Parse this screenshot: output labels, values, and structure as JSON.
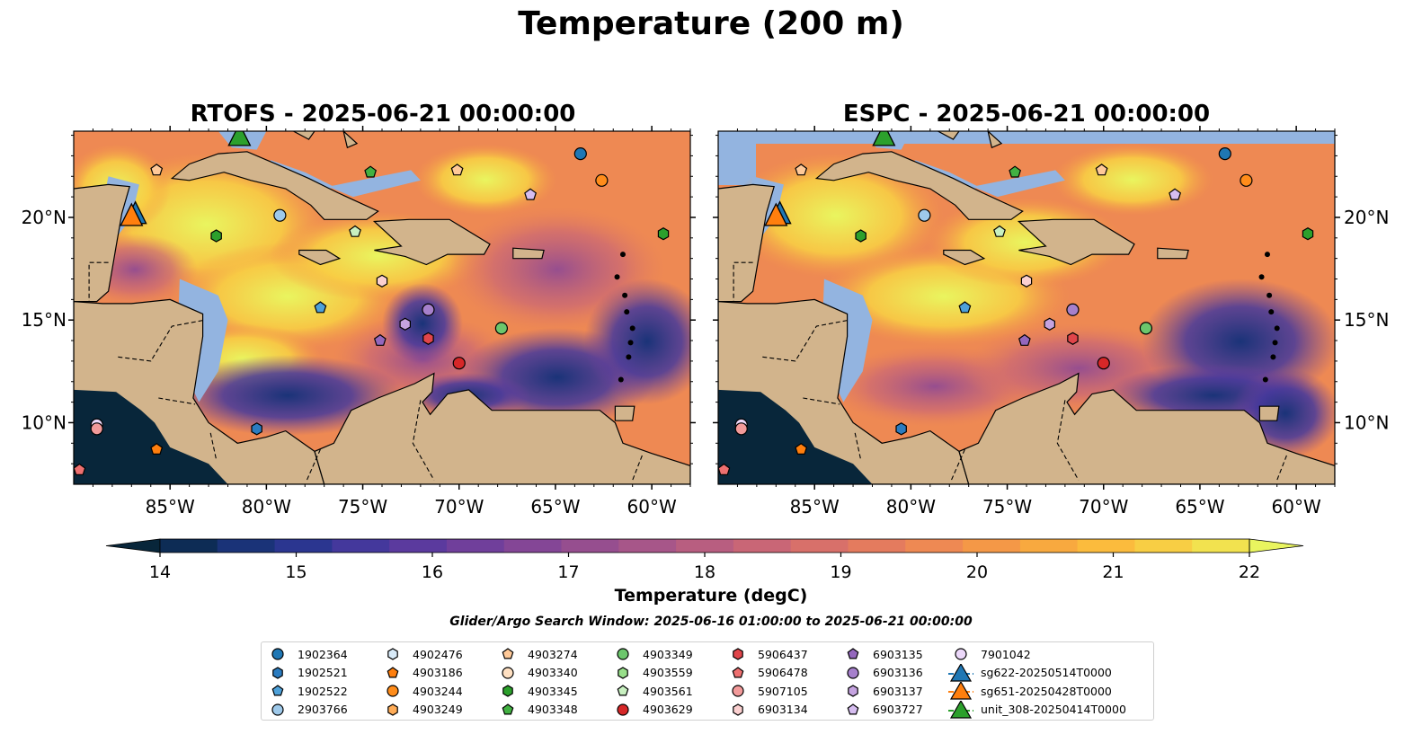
{
  "figure": {
    "title": "Temperature (200 m)",
    "panels": [
      {
        "title": "RTOFS - 2025-06-21 00:00:00"
      },
      {
        "title": "ESPC - 2025-06-21 00:00:00"
      }
    ],
    "lat_ticks": [
      "10°N",
      "15°N",
      "20°N"
    ],
    "lon_ticks": [
      "85°W",
      "80°W",
      "75°W",
      "70°W",
      "65°W",
      "60°W"
    ],
    "colorbar": {
      "label": "Temperature (degC)",
      "ticks": [
        "14",
        "15",
        "16",
        "17",
        "18",
        "19",
        "20",
        "21",
        "22"
      ],
      "colors": [
        "#08263a",
        "#0d2c55",
        "#1a3378",
        "#2b3690",
        "#44389c",
        "#5b3a9e",
        "#703f9b",
        "#844696",
        "#964e8f",
        "#a75689",
        "#b85e80",
        "#c96676",
        "#d8706a",
        "#e47b5e",
        "#ee8953",
        "#f49847",
        "#f8a93f",
        "#fbbb3d",
        "#f8ce44",
        "#f2e24f",
        "#e9f55f"
      ]
    },
    "search_window": "Glider/Argo Search Window: 2025-06-16 01:00:00 to 2025-06-21 00:00:00"
  },
  "map_colors": {
    "land": "#d2b48c",
    "shallow": "#93b4e0",
    "deep_cold": "#08263a"
  },
  "legend": [
    {
      "label": "1902364",
      "marker": "circle",
      "color": "#1f77b4"
    },
    {
      "label": "1902521",
      "marker": "hexagon",
      "color": "#2b7cc0"
    },
    {
      "label": "1902522",
      "marker": "pentagon",
      "color": "#4ea1d9"
    },
    {
      "label": "2903766",
      "marker": "circle",
      "color": "#9ec9ea"
    },
    {
      "label": "4902476",
      "marker": "hexagon",
      "color": "#d8eaf8"
    },
    {
      "label": "4903186",
      "marker": "pentagon",
      "color": "#ff7f0e"
    },
    {
      "label": "4903244",
      "marker": "circle",
      "color": "#ff8c1a"
    },
    {
      "label": "4903249",
      "marker": "hexagon",
      "color": "#ffac57"
    },
    {
      "label": "4903274",
      "marker": "pentagon",
      "color": "#ffc998"
    },
    {
      "label": "4903340",
      "marker": "circle",
      "color": "#ffe0c2"
    },
    {
      "label": "4903345",
      "marker": "hexagon",
      "color": "#2ca02c"
    },
    {
      "label": "4903348",
      "marker": "pentagon",
      "color": "#42b142"
    },
    {
      "label": "4903349",
      "marker": "circle",
      "color": "#6cc66c"
    },
    {
      "label": "4903559",
      "marker": "hexagon",
      "color": "#98df8a"
    },
    {
      "label": "4903561",
      "marker": "pentagon",
      "color": "#c8f0c0"
    },
    {
      "label": "4903629",
      "marker": "circle",
      "color": "#d62728"
    },
    {
      "label": "5906437",
      "marker": "hexagon",
      "color": "#e0454a"
    },
    {
      "label": "5906478",
      "marker": "pentagon",
      "color": "#ee7070"
    },
    {
      "label": "5907105",
      "marker": "circle",
      "color": "#f29a9a"
    },
    {
      "label": "6903134",
      "marker": "hexagon",
      "color": "#fbd0d0"
    },
    {
      "label": "6903135",
      "marker": "pentagon",
      "color": "#9467bd"
    },
    {
      "label": "6903136",
      "marker": "circle",
      "color": "#a680cc"
    },
    {
      "label": "6903137",
      "marker": "hexagon",
      "color": "#c5a3e0"
    },
    {
      "label": "6903727",
      "marker": "pentagon",
      "color": "#d6bdf0"
    },
    {
      "label": "7901042",
      "marker": "circle",
      "color": "#ecd8fa"
    },
    {
      "label": "sg622-20250514T0000",
      "marker": "triangle",
      "color": "#1f77b4"
    },
    {
      "label": "sg651-20250428T0000",
      "marker": "triangle",
      "color": "#ff7f0e"
    },
    {
      "label": "unit_308-20250414T0000",
      "marker": "triangle",
      "color": "#2ca02c"
    }
  ],
  "observations": [
    {
      "id": "1902364",
      "lon": -63.7,
      "lat": 23.1
    },
    {
      "id": "4903244",
      "lon": -62.6,
      "lat": 21.8
    },
    {
      "id": "2903766",
      "lon": -79.3,
      "lat": 20.1
    },
    {
      "id": "4903274",
      "lon": -85.7,
      "lat": 22.3
    },
    {
      "id": "4903274",
      "lon": -70.1,
      "lat": 22.3
    },
    {
      "id": "4903348",
      "lon": -74.6,
      "lat": 22.2
    },
    {
      "id": "6903727",
      "lon": -66.3,
      "lat": 21.1
    },
    {
      "id": "4903345",
      "lon": -82.6,
      "lat": 19.1
    },
    {
      "id": "4903561",
      "lon": -75.4,
      "lat": 19.3
    },
    {
      "id": "4903345",
      "lon": -59.4,
      "lat": 19.2
    },
    {
      "id": "6903134",
      "lon": -74.0,
      "lat": 16.9
    },
    {
      "id": "1902522",
      "lon": -77.2,
      "lat": 15.6
    },
    {
      "id": "6903136",
      "lon": -71.6,
      "lat": 15.5
    },
    {
      "id": "6903137",
      "lon": -72.8,
      "lat": 14.8
    },
    {
      "id": "6903135",
      "lon": -74.1,
      "lat": 14.0
    },
    {
      "id": "5906437",
      "lon": -71.6,
      "lat": 14.1
    },
    {
      "id": "4903349",
      "lon": -67.8,
      "lat": 14.6
    },
    {
      "id": "4903629",
      "lon": -70.0,
      "lat": 12.9
    },
    {
      "id": "7901042",
      "lon": -88.8,
      "lat": 9.9
    },
    {
      "id": "5907105",
      "lon": -88.8,
      "lat": 9.7
    },
    {
      "id": "1902521",
      "lon": -80.5,
      "lat": 9.7
    },
    {
      "id": "4903186",
      "lon": -85.7,
      "lat": 8.7
    },
    {
      "id": "5906478",
      "lon": -89.7,
      "lat": 7.7
    }
  ],
  "gliders": [
    {
      "id": "sg622-20250514T0000",
      "lon": -86.8,
      "lat": 20.1
    },
    {
      "id": "sg651-20250428T0000",
      "lon": -87.0,
      "lat": 20.0
    },
    {
      "id": "unit_308-20250414T0000",
      "lon": -81.4,
      "lat": 23.9
    }
  ]
}
